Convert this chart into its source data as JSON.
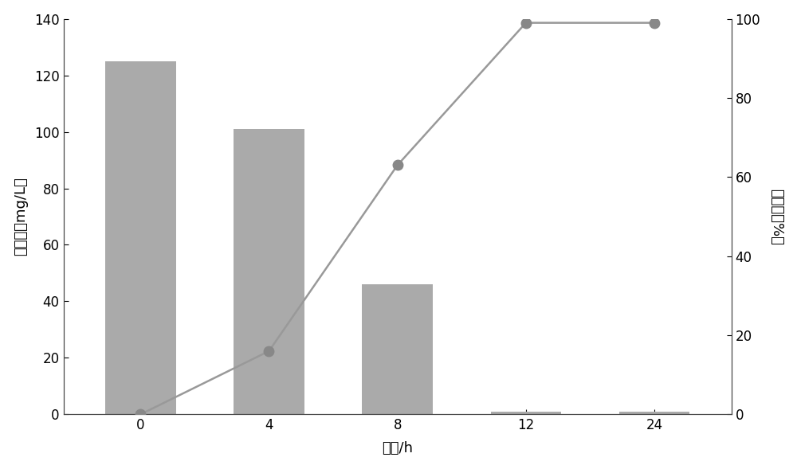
{
  "x_indices": [
    0,
    1,
    2,
    3,
    4
  ],
  "x_labels": [
    "0",
    "4",
    "8",
    "12",
    "24"
  ],
  "bar_values": [
    125,
    101,
    46,
    1,
    1
  ],
  "line_values": [
    0,
    16,
    63,
    99,
    99
  ],
  "bar_color": "#aaaaaa",
  "line_color": "#999999",
  "marker_color": "#888888",
  "xlabel": "时间/h",
  "ylabel_left": "硝酸盐（mg/L）",
  "ylabel_right": "去除率（%）",
  "ylim_left": [
    0,
    140
  ],
  "ylim_right": [
    0,
    100
  ],
  "yticks_left": [
    0,
    20,
    40,
    60,
    80,
    100,
    120,
    140
  ],
  "yticks_right": [
    0,
    20,
    40,
    60,
    80,
    100
  ],
  "background_color": "#ffffff",
  "bar_width": 0.55,
  "linewidth": 1.8,
  "markersize": 9,
  "tick_fontsize": 12,
  "label_fontsize": 13
}
